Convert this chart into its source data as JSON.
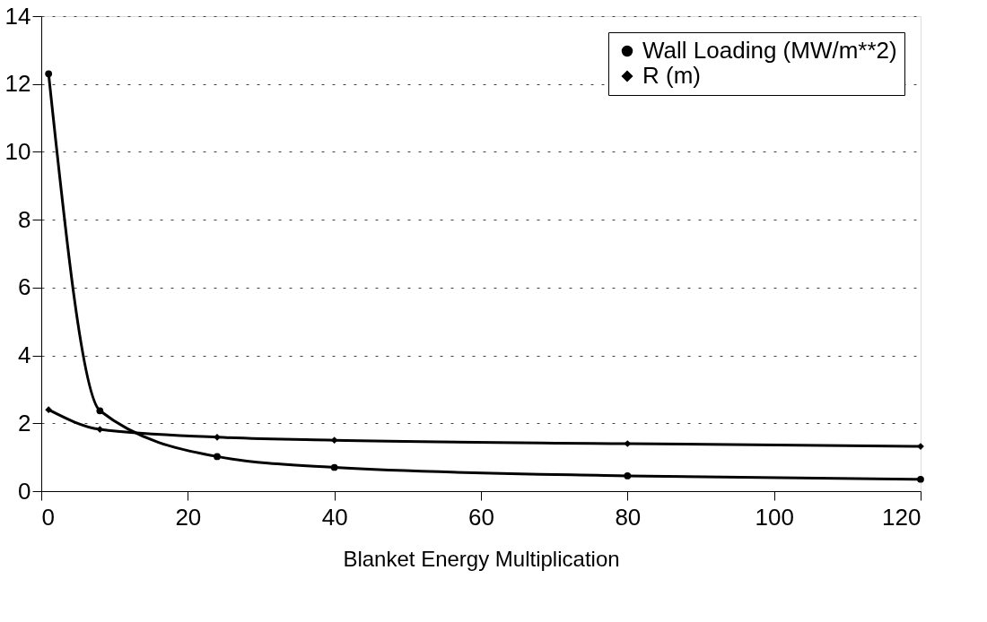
{
  "chart_data": {
    "type": "line",
    "xlabel": "Blanket Energy Multiplication",
    "x": [
      1,
      8,
      24,
      40,
      80,
      120
    ],
    "series": [
      {
        "name": "Wall Loading (MW/m**2)",
        "color": "#000000",
        "marker": "circle",
        "values": [
          12.3,
          2.37,
          1.02,
          0.7,
          0.45,
          0.35
        ]
      },
      {
        "name": "R (m)",
        "color": "#000000",
        "marker": "diamond",
        "values": [
          2.4,
          1.82,
          1.59,
          1.5,
          1.4,
          1.32
        ]
      }
    ],
    "xlim": [
      0,
      120
    ],
    "xticks": [
      0,
      20,
      40,
      60,
      80,
      100,
      120
    ],
    "ylim": [
      0,
      14
    ],
    "yticks": [
      0,
      2,
      4,
      6,
      8,
      10,
      12,
      14
    ],
    "grid": "y",
    "legend": "top right",
    "line_style": "solid"
  }
}
